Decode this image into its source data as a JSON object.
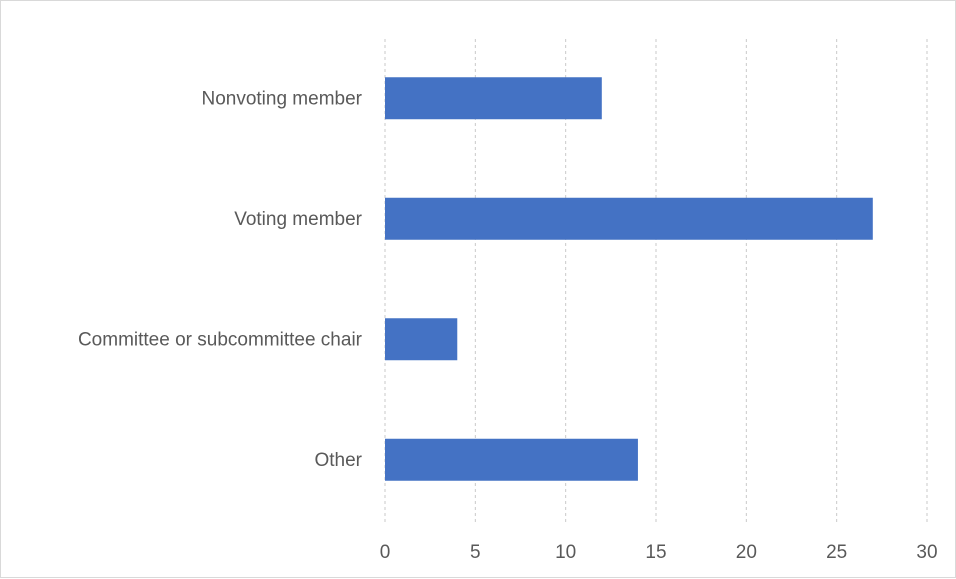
{
  "chart_data": {
    "type": "bar",
    "orientation": "horizontal",
    "categories": [
      "Nonvoting member",
      "Voting member",
      "Committee or subcommittee chair",
      "Other"
    ],
    "values": [
      12,
      27,
      4,
      14
    ],
    "xlim": [
      0,
      30
    ],
    "xticks": [
      0,
      5,
      10,
      15,
      20,
      25,
      30
    ],
    "grid": "vertical dashed",
    "legend": "none",
    "bar_color": "#4472c4"
  }
}
